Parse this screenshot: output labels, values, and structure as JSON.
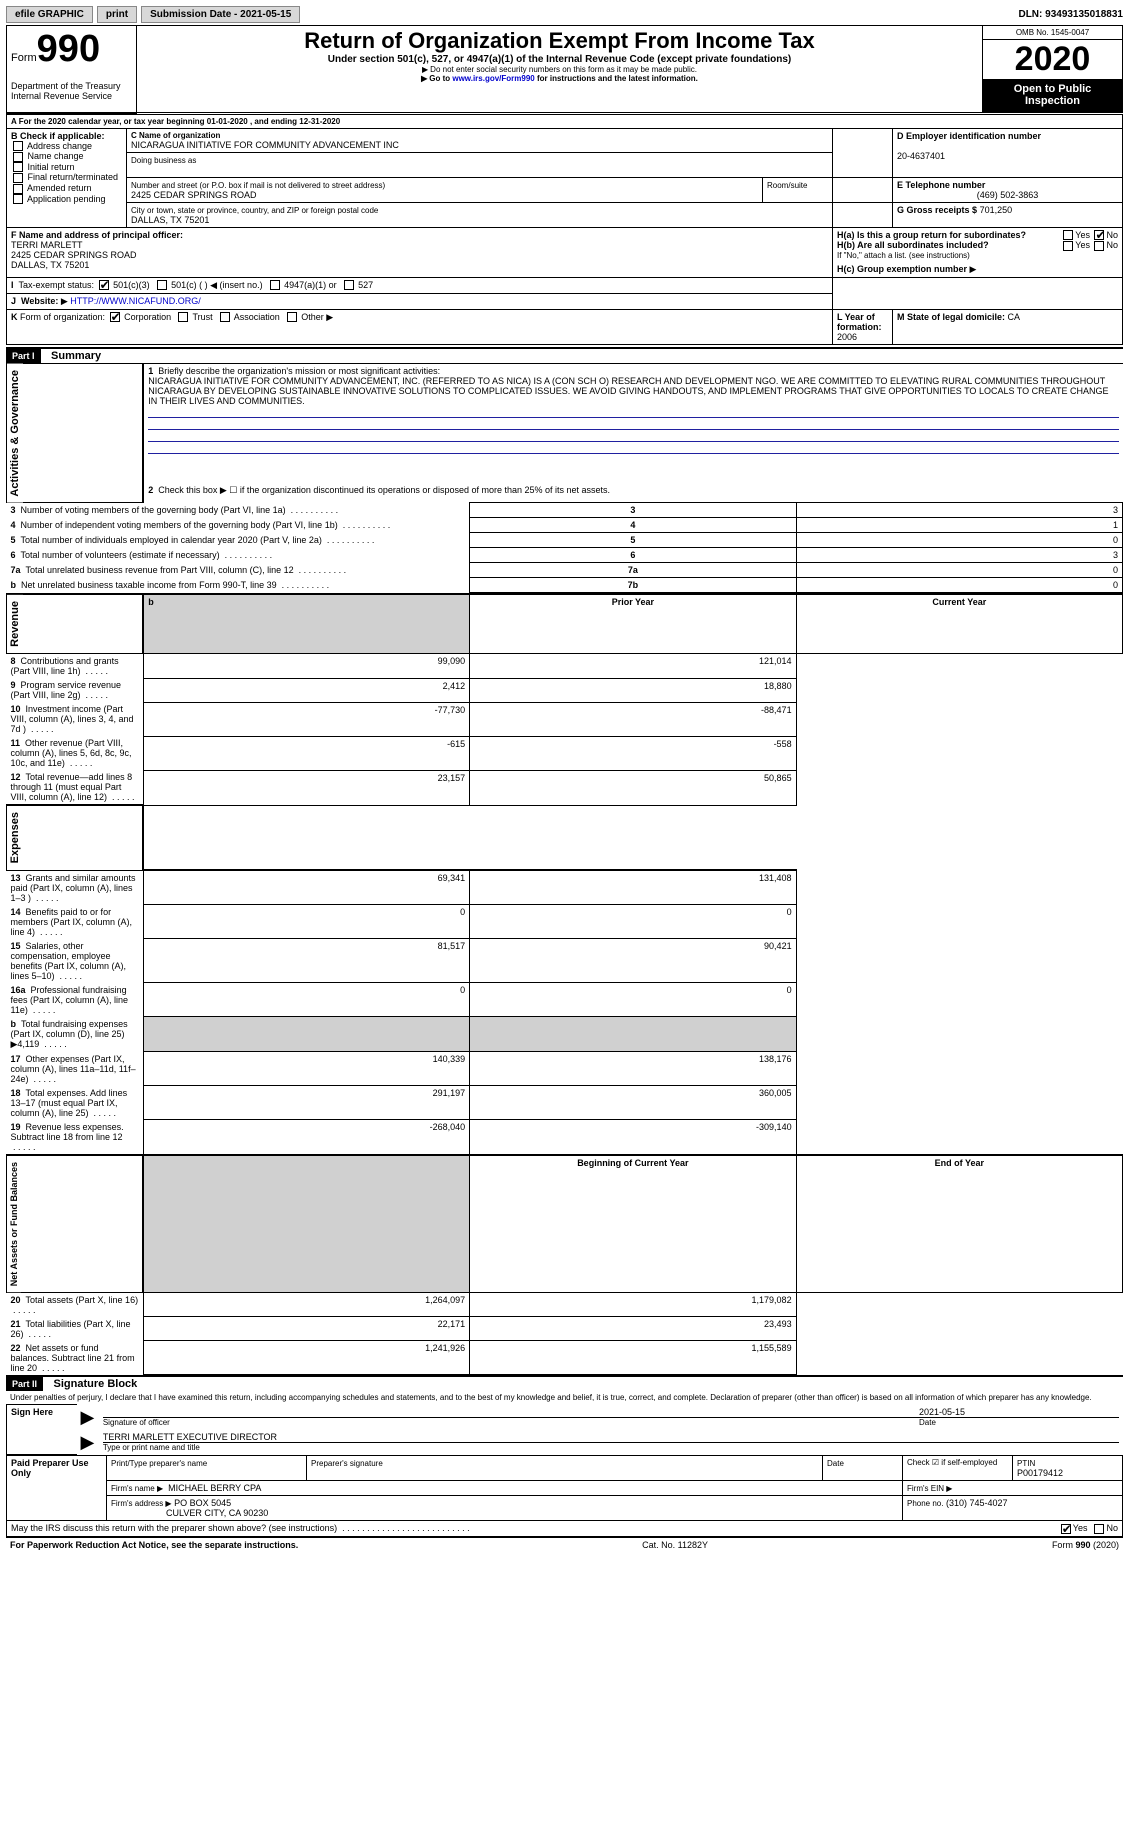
{
  "topbar": {
    "efile": "efile GRAPHIC",
    "print": "print",
    "subdate_label": "Submission Date - 2021-05-15",
    "dln": "DLN: 93493135018831"
  },
  "header": {
    "form_label": "Form",
    "form_number": "990",
    "dept": "Department of the Treasury\nInternal Revenue Service",
    "title": "Return of Organization Exempt From Income Tax",
    "subtitle1": "Under section 501(c), 527, or 4947(a)(1) of the Internal Revenue Code (except private foundations)",
    "subtitle2": "Do not enter social security numbers on this form as it may be made public.",
    "subtitle3_pre": "Go to ",
    "subtitle3_link": "www.irs.gov/Form990",
    "subtitle3_post": " for instructions and the latest information.",
    "omb": "OMB No. 1545-0047",
    "year": "2020",
    "open": "Open to Public\nInspection"
  },
  "sectionA": {
    "line": "For the 2020 calendar year, or tax year beginning 01-01-2020    , and ending 12-31-2020",
    "B_label": "B Check if applicable:",
    "B_items": [
      "Address change",
      "Name change",
      "Initial return",
      "Final return/terminated",
      "Amended return",
      "Application pending"
    ],
    "C_label": "C Name of organization",
    "C_name": "NICARAGUA INITIATIVE FOR COMMUNITY ADVANCEMENT INC",
    "dba_label": "Doing business as",
    "addr_label": "Number and street (or P.O. box if mail is not delivered to street address)",
    "room_label": "Room/suite",
    "addr": "2425 CEDAR SPRINGS ROAD",
    "city_label": "City or town, state or province, country, and ZIP or foreign postal code",
    "city": "DALLAS, TX  75201",
    "D_label": "D Employer identification number",
    "D_val": "20-4637401",
    "E_label": "E Telephone number",
    "E_val": "(469) 502-3863",
    "G_label": "G Gross receipts $",
    "G_val": "701,250",
    "F_label": "F  Name and address of principal officer:",
    "F_name": "TERRI MARLETT",
    "F_addr1": "2425 CEDAR SPRINGS ROAD",
    "F_addr2": "DALLAS, TX  75201",
    "Ha_label": "H(a)  Is this a group return for subordinates?",
    "Hb_label": "H(b)  Are all subordinates included?",
    "Hb_note": "If \"No,\" attach a list. (see instructions)",
    "Hc_label": "H(c)  Group exemption number",
    "yes": "Yes",
    "no": "No",
    "I_label": "Tax-exempt status:",
    "I_opts": [
      "501(c)(3)",
      "501(c) (   ) ◀ (insert no.)",
      "4947(a)(1) or",
      "527"
    ],
    "J_label": "Website:",
    "J_val": "HTTP://WWW.NICAFUND.ORG/",
    "K_label": "Form of organization:",
    "K_opts": [
      "Corporation",
      "Trust",
      "Association",
      "Other"
    ],
    "L_label": "L Year of formation:",
    "L_val": "2006",
    "M_label": "M State of legal domicile:",
    "M_val": "CA"
  },
  "part1": {
    "header": "Part I",
    "title": "Summary",
    "section_ag": "Activities & Governance",
    "section_rev": "Revenue",
    "section_exp": "Expenses",
    "section_na": "Net Assets or\nFund Balances",
    "line1_label": "Briefly describe the organization's mission or most significant activities:",
    "line1_text": "NICARAGUA INITIATIVE FOR COMMUNITY ADVANCEMENT, INC. (REFERRED TO AS NICA) IS A (CON SCH O) RESEARCH AND DEVELOPMENT NGO. WE ARE COMMITTED TO ELEVATING RURAL COMMUNITIES THROUGHOUT NICARAGUA BY DEVELOPING SUSTAINABLE INNOVATIVE SOLUTIONS TO COMPLICATED ISSUES. WE AVOID GIVING HANDOUTS, AND IMPLEMENT PROGRAMS THAT GIVE OPPORTUNITIES TO LOCALS TO CREATE CHANGE IN THEIR LIVES AND COMMUNITIES.",
    "line2": "Check this box ▶ ☐ if the organization discontinued its operations or disposed of more than 25% of its net assets.",
    "rows_gov": [
      {
        "n": "3",
        "label": "Number of voting members of the governing body (Part VI, line 1a)",
        "c": "3",
        "v": "3"
      },
      {
        "n": "4",
        "label": "Number of independent voting members of the governing body (Part VI, line 1b)",
        "c": "4",
        "v": "1"
      },
      {
        "n": "5",
        "label": "Total number of individuals employed in calendar year 2020 (Part V, line 2a)",
        "c": "5",
        "v": "0"
      },
      {
        "n": "6",
        "label": "Total number of volunteers (estimate if necessary)",
        "c": "6",
        "v": "3"
      },
      {
        "n": "7a",
        "label": "Total unrelated business revenue from Part VIII, column (C), line 12",
        "c": "7a",
        "v": "0"
      },
      {
        "n": "b",
        "label": "Net unrelated business taxable income from Form 990-T, line 39",
        "c": "7b",
        "v": "0"
      }
    ],
    "col_prior": "Prior Year",
    "col_current": "Current Year",
    "rows_rev": [
      {
        "n": "8",
        "label": "Contributions and grants (Part VIII, line 1h)",
        "p": "99,090",
        "c": "121,014"
      },
      {
        "n": "9",
        "label": "Program service revenue (Part VIII, line 2g)",
        "p": "2,412",
        "c": "18,880"
      },
      {
        "n": "10",
        "label": "Investment income (Part VIII, column (A), lines 3, 4, and 7d )",
        "p": "-77,730",
        "c": "-88,471"
      },
      {
        "n": "11",
        "label": "Other revenue (Part VIII, column (A), lines 5, 6d, 8c, 9c, 10c, and 11e)",
        "p": "-615",
        "c": "-558"
      },
      {
        "n": "12",
        "label": "Total revenue—add lines 8 through 11 (must equal Part VIII, column (A), line 12)",
        "p": "23,157",
        "c": "50,865"
      }
    ],
    "rows_exp": [
      {
        "n": "13",
        "label": "Grants and similar amounts paid (Part IX, column (A), lines 1–3 )",
        "p": "69,341",
        "c": "131,408"
      },
      {
        "n": "14",
        "label": "Benefits paid to or for members (Part IX, column (A), line 4)",
        "p": "0",
        "c": "0"
      },
      {
        "n": "15",
        "label": "Salaries, other compensation, employee benefits (Part IX, column (A), lines 5–10)",
        "p": "81,517",
        "c": "90,421"
      },
      {
        "n": "16a",
        "label": "Professional fundraising fees (Part IX, column (A), line 11e)",
        "p": "0",
        "c": "0"
      },
      {
        "n": "b",
        "label": "Total fundraising expenses (Part IX, column (D), line 25) ▶4,119",
        "p": "",
        "c": "",
        "shaded": true
      },
      {
        "n": "17",
        "label": "Other expenses (Part IX, column (A), lines 11a–11d, 11f–24e)",
        "p": "140,339",
        "c": "138,176"
      },
      {
        "n": "18",
        "label": "Total expenses. Add lines 13–17 (must equal Part IX, column (A), line 25)",
        "p": "291,197",
        "c": "360,005"
      },
      {
        "n": "19",
        "label": "Revenue less expenses. Subtract line 18 from line 12",
        "p": "-268,040",
        "c": "-309,140"
      }
    ],
    "col_begin": "Beginning of Current Year",
    "col_end": "End of Year",
    "rows_na": [
      {
        "n": "20",
        "label": "Total assets (Part X, line 16)",
        "p": "1,264,097",
        "c": "1,179,082"
      },
      {
        "n": "21",
        "label": "Total liabilities (Part X, line 26)",
        "p": "22,171",
        "c": "23,493"
      },
      {
        "n": "22",
        "label": "Net assets or fund balances. Subtract line 21 from line 20",
        "p": "1,241,926",
        "c": "1,155,589"
      }
    ]
  },
  "part2": {
    "header": "Part II",
    "title": "Signature Block",
    "perjury": "Under penalties of perjury, I declare that I have examined this return, including accompanying schedules and statements, and to the best of my knowledge and belief, it is true, correct, and complete. Declaration of preparer (other than officer) is based on all information of which preparer has any knowledge.",
    "sign_here": "Sign Here",
    "sig_officer": "Signature of officer",
    "sig_date": "2021-05-15",
    "date_label": "Date",
    "officer_name": "TERRI MARLETT EXECUTIVE DIRECTOR",
    "type_name": "Type or print name and title",
    "paid": "Paid Preparer Use Only",
    "prep_name_label": "Print/Type preparer's name",
    "prep_sig_label": "Preparer's signature",
    "check_self": "Check ☑ if self-employed",
    "ptin_label": "PTIN",
    "ptin": "P00179412",
    "firm_name_label": "Firm's name   ▶",
    "firm_name": "MICHAEL BERRY CPA",
    "firm_ein_label": "Firm's EIN ▶",
    "firm_addr_label": "Firm's address ▶",
    "firm_addr1": "PO BOX 5045",
    "firm_addr2": "CULVER CITY, CA  90230",
    "phone_label": "Phone no.",
    "phone": "(310) 745-4027",
    "discuss": "May the IRS discuss this return with the preparer shown above? (see instructions)"
  },
  "footer": {
    "left": "For Paperwork Reduction Act Notice, see the separate instructions.",
    "mid": "Cat. No. 11282Y",
    "right_pre": "Form ",
    "right_num": "990",
    "right_post": " (2020)"
  }
}
